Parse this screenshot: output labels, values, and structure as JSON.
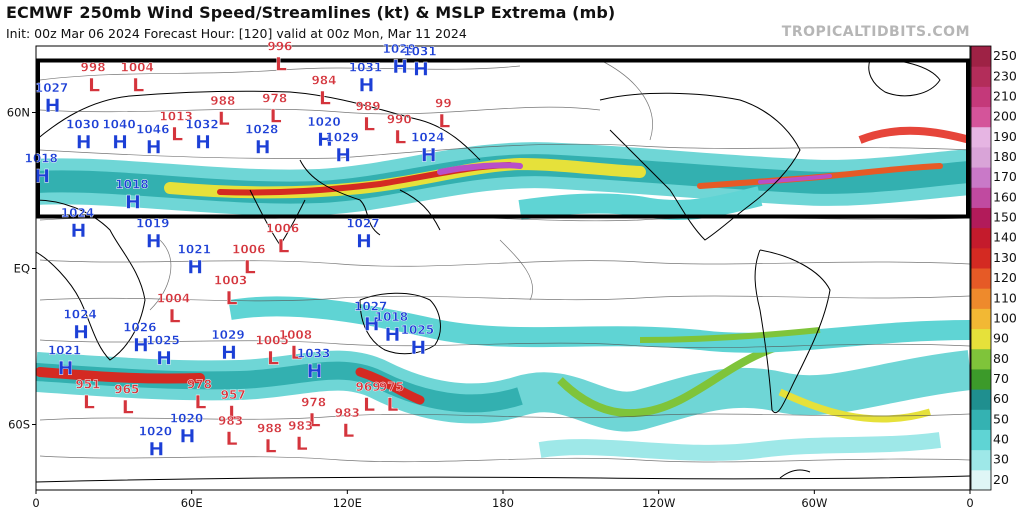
{
  "header": {
    "title": "ECMWF 250mb Wind Speed/Streamlines (kt) & MSLP Extrema (mb)",
    "subtitle": "Init: 00z Mar 06 2024   Forecast Hour: [120]   valid at 00z Mon, Mar 11 2024",
    "watermark": "TROPICALTIDBITS.COM"
  },
  "map": {
    "x_axis_labels": [
      "0",
      "60E",
      "120E",
      "180",
      "120W",
      "60W",
      "0"
    ],
    "y_axis_labels": [
      "60N",
      "EQ",
      "60S"
    ],
    "highlight_box": {
      "lat_top": 80,
      "lat_bottom": 20
    },
    "ocean_color": "#ffffff"
  },
  "colorbar": {
    "unit": "kt",
    "levels": [
      "20",
      "30",
      "40",
      "50",
      "60",
      "70",
      "80",
      "90",
      "100",
      "110",
      "120",
      "130",
      "140",
      "150",
      "160",
      "170",
      "180",
      "190",
      "200",
      "210",
      "230",
      "250"
    ],
    "colors": [
      "#dff6f6",
      "#9ee8e8",
      "#5fd4d4",
      "#34b2b2",
      "#1f8f8f",
      "#3c9a2a",
      "#7fc43a",
      "#e6e13a",
      "#f2b834",
      "#ee8a2c",
      "#e65a26",
      "#d42a22",
      "#c41b2c",
      "#b21b5a",
      "#c04aa0",
      "#c979c8",
      "#d9a4d8",
      "#e6b5e3",
      "#d4549a",
      "#c4397a",
      "#b32d5a",
      "#9e2245"
    ]
  },
  "pressure_systems": [
    {
      "type": "L",
      "value": "998",
      "lon": 22,
      "lat": 72
    },
    {
      "type": "L",
      "value": "1004",
      "lon": 39,
      "lat": 72
    },
    {
      "type": "H",
      "value": "1027",
      "lon": 6,
      "lat": 64
    },
    {
      "type": "H",
      "value": "1030",
      "lon": 18,
      "lat": 50
    },
    {
      "type": "H",
      "value": "1040",
      "lon": 32,
      "lat": 50
    },
    {
      "type": "H",
      "value": "1046",
      "lon": 45,
      "lat": 48
    },
    {
      "type": "L",
      "value": "1013",
      "lon": 54,
      "lat": 53
    },
    {
      "type": "H",
      "value": "1032",
      "lon": 64,
      "lat": 50
    },
    {
      "type": "H",
      "value": "1028",
      "lon": 87,
      "lat": 48
    },
    {
      "type": "L",
      "value": "988",
      "lon": 72,
      "lat": 59
    },
    {
      "type": "L",
      "value": "978",
      "lon": 92,
      "lat": 60
    },
    {
      "type": "L",
      "value": "996",
      "lon": 94,
      "lat": 80
    },
    {
      "type": "L",
      "value": "984",
      "lon": 111,
      "lat": 67
    },
    {
      "type": "H",
      "value": "1029",
      "lon": 140,
      "lat": 79
    },
    {
      "type": "H",
      "value": "1031",
      "lon": 148,
      "lat": 78
    },
    {
      "type": "H",
      "value": "1031",
      "lon": 127,
      "lat": 72
    },
    {
      "type": "H",
      "value": "1020",
      "lon": 111,
      "lat": 51
    },
    {
      "type": "H",
      "value": "1029",
      "lon": 118,
      "lat": 45
    },
    {
      "type": "L",
      "value": "989",
      "lon": 128,
      "lat": 57
    },
    {
      "type": "L",
      "value": "990",
      "lon": 140,
      "lat": 52
    },
    {
      "type": "L",
      "value": "99",
      "lon": 157,
      "lat": 58
    },
    {
      "type": "H",
      "value": "1024",
      "lon": 151,
      "lat": 45
    },
    {
      "type": "H",
      "value": "1018",
      "lon": 2,
      "lat": 37
    },
    {
      "type": "H",
      "value": "1018",
      "lon": 37,
      "lat": 27
    },
    {
      "type": "H",
      "value": "1024",
      "lon": 16,
      "lat": 16
    },
    {
      "type": "H",
      "value": "1019",
      "lon": 45,
      "lat": 12
    },
    {
      "type": "H",
      "value": "1021",
      "lon": 61,
      "lat": 2
    },
    {
      "type": "H",
      "value": "1027",
      "lon": 126,
      "lat": 12
    },
    {
      "type": "L",
      "value": "1006",
      "lon": 82,
      "lat": 2
    },
    {
      "type": "L",
      "value": "1006",
      "lon": 95,
      "lat": 10
    },
    {
      "type": "L",
      "value": "1003",
      "lon": 75,
      "lat": -10
    },
    {
      "type": "L",
      "value": "1004",
      "lon": 53,
      "lat": -17
    },
    {
      "type": "H",
      "value": "1024",
      "lon": 17,
      "lat": -23
    },
    {
      "type": "H",
      "value": "1026",
      "lon": 40,
      "lat": -28
    },
    {
      "type": "H",
      "value": "1025",
      "lon": 49,
      "lat": -33
    },
    {
      "type": "H",
      "value": "1021",
      "lon": 11,
      "lat": -37
    },
    {
      "type": "H",
      "value": "1029",
      "lon": 74,
      "lat": -31
    },
    {
      "type": "L",
      "value": "1005",
      "lon": 91,
      "lat": -33
    },
    {
      "type": "L",
      "value": "1008",
      "lon": 100,
      "lat": -31
    },
    {
      "type": "H",
      "value": "1033",
      "lon": 107,
      "lat": -38
    },
    {
      "type": "H",
      "value": "1027",
      "lon": 129,
      "lat": -20
    },
    {
      "type": "H",
      "value": "1018",
      "lon": 137,
      "lat": -24
    },
    {
      "type": "H",
      "value": "1025",
      "lon": 147,
      "lat": -29
    },
    {
      "type": "L",
      "value": "951",
      "lon": 20,
      "lat": -50
    },
    {
      "type": "L",
      "value": "965",
      "lon": 35,
      "lat": -52
    },
    {
      "type": "L",
      "value": "978",
      "lon": 63,
      "lat": -50
    },
    {
      "type": "L",
      "value": "957",
      "lon": 76,
      "lat": -54
    },
    {
      "type": "L",
      "value": "978",
      "lon": 107,
      "lat": -57
    },
    {
      "type": "L",
      "value": "983",
      "lon": 120,
      "lat": -61
    },
    {
      "type": "L",
      "value": "969",
      "lon": 128,
      "lat": -51
    },
    {
      "type": "L",
      "value": "975",
      "lon": 137,
      "lat": -51
    },
    {
      "type": "H",
      "value": "1020",
      "lon": 58,
      "lat": -63
    },
    {
      "type": "H",
      "value": "1020",
      "lon": 46,
      "lat": -68
    },
    {
      "type": "L",
      "value": "983",
      "lon": 75,
      "lat": -64
    },
    {
      "type": "L",
      "value": "988",
      "lon": 90,
      "lat": -67
    },
    {
      "type": "L",
      "value": "983",
      "lon": 102,
      "lat": -66
    }
  ]
}
